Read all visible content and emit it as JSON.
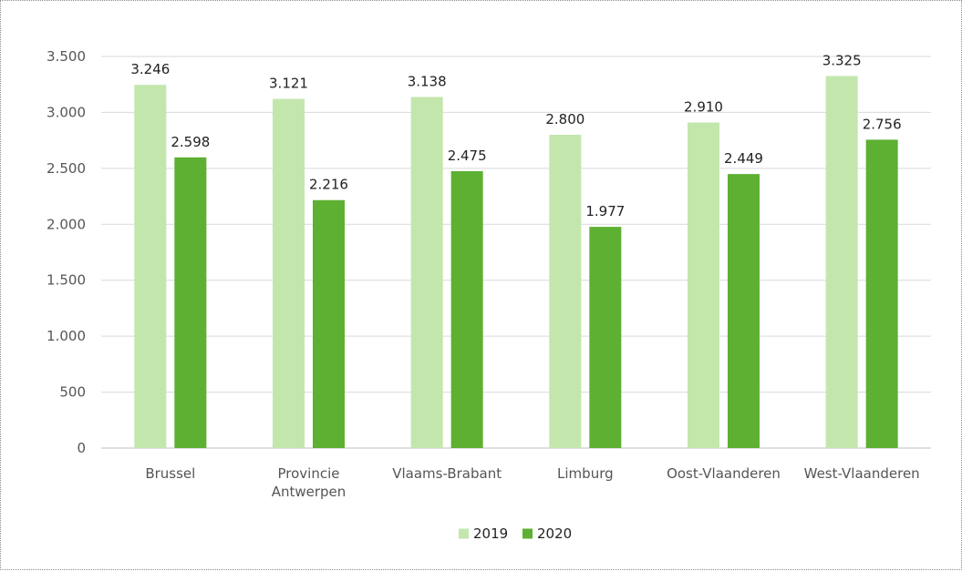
{
  "chart_data": {
    "type": "bar",
    "categories": [
      [
        "Brussel"
      ],
      [
        "Provincie",
        "Antwerpen"
      ],
      [
        "Vlaams-Brabant"
      ],
      [
        "Limburg"
      ],
      [
        "Oost-Vlaanderen"
      ],
      [
        "West-Vlaanderen"
      ]
    ],
    "series": [
      {
        "name": "2019",
        "color": "#c3e6ad",
        "values": [
          3246,
          3121,
          3138,
          2800,
          2910,
          3325
        ],
        "labels": [
          "3.246",
          "3.121",
          "3.138",
          "2.800",
          "2.910",
          "3.325"
        ]
      },
      {
        "name": "2020",
        "color": "#5db032",
        "values": [
          2598,
          2216,
          2475,
          1977,
          2449,
          2756
        ],
        "labels": [
          "2.598",
          "2.216",
          "2.475",
          "1.977",
          "2.449",
          "2.756"
        ]
      }
    ],
    "ylim": [
      0,
      3500
    ],
    "yticks": [
      0,
      500,
      1000,
      1500,
      2000,
      2500,
      3000,
      3500
    ],
    "ytick_labels": [
      "0",
      "500",
      "1.000",
      "1.500",
      "2.000",
      "2.500",
      "3.000",
      "3.500"
    ],
    "grid": true,
    "legend_position": "bottom",
    "title": "",
    "xlabel": "",
    "ylabel": ""
  }
}
